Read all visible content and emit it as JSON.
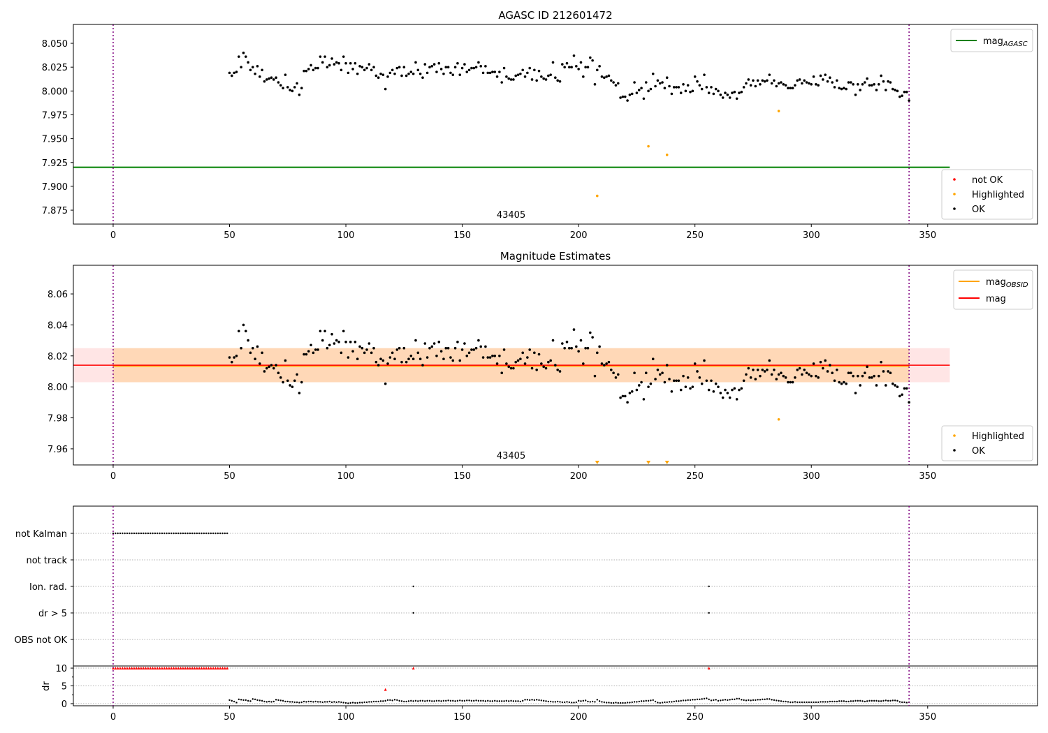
{
  "chart_data": [
    {
      "type": "scatter",
      "title": "AGASC ID 212601472",
      "annotation": "43405",
      "xlim": [
        -17.1,
        397.2
      ],
      "ylim": [
        7.8604,
        8.0698
      ],
      "xticks": [
        0,
        50,
        100,
        150,
        200,
        250,
        300,
        350
      ],
      "yticks": [
        7.875,
        7.9,
        7.925,
        7.95,
        7.975,
        8.0,
        8.025,
        8.05
      ],
      "ytick_labels": [
        "7.875",
        "7.900",
        "7.925",
        "7.950",
        "7.975",
        "8.000",
        "8.025",
        "8.050"
      ],
      "mag_agasc": 7.92,
      "legend_lines": [
        {
          "label": "mag",
          "sub": "AGASC",
          "color": "#008000"
        }
      ],
      "legend_points": [
        {
          "label": "not OK",
          "color": "#ff0000"
        },
        {
          "label": "Highlighted",
          "color": "#ffa500"
        },
        {
          "label": "OK",
          "color": "#000000"
        }
      ],
      "highlighted": [
        [
          208,
          7.89
        ],
        [
          230,
          7.942
        ],
        [
          238,
          7.933
        ],
        [
          286,
          7.979
        ]
      ]
    },
    {
      "type": "scatter",
      "title": "Magnitude Estimates",
      "annotation": "43405",
      "xlim": [
        -17.1,
        397.2
      ],
      "ylim": [
        7.9496,
        8.0785
      ],
      "xticks": [
        0,
        50,
        100,
        150,
        200,
        250,
        300,
        350
      ],
      "yticks": [
        7.96,
        7.98,
        8.0,
        8.02,
        8.04,
        8.06
      ],
      "ytick_labels": [
        "7.96",
        "7.98",
        "8.00",
        "8.02",
        "8.04",
        "8.06"
      ],
      "mag": 8.014,
      "mag_obsid": 8.0135,
      "band": [
        8.003,
        8.025
      ],
      "legend_lines": [
        {
          "label": "mag",
          "sub": "OBSID",
          "color": "#ffa500"
        },
        {
          "label": "mag",
          "sub": "",
          "color": "#ff0000"
        }
      ],
      "legend_points": [
        {
          "label": "Highlighted",
          "color": "#ffa500"
        },
        {
          "label": "OK",
          "color": "#000000"
        }
      ],
      "highlighted": [
        [
          286,
          7.979
        ]
      ],
      "off_scale_low": [
        208,
        230,
        238
      ]
    },
    {
      "type": "scatter",
      "title": "",
      "flag_labels": [
        "OBS not OK",
        "dr > 5",
        "Ion. rad.",
        "not track",
        "not Kalman"
      ],
      "flags": {
        "not Kalman": {
          "x_from": 0,
          "x_to": 49
        },
        "Ion. rad.": [
          129,
          256
        ],
        "dr > 5": [
          129,
          256
        ]
      },
      "dr_ylabel": "dr",
      "dr_yticks": [
        0,
        5,
        10
      ],
      "dr_ytick_labels": [
        "0",
        "5",
        "10"
      ],
      "dr_ylim": [
        -0.6,
        10.6
      ],
      "dr_not_ok": [
        [
          117,
          4.0
        ],
        [
          129,
          10
        ],
        [
          256,
          10
        ]
      ],
      "dr_not_ok_range": {
        "x_from": 0,
        "x_to": 49,
        "value": 10
      },
      "dr_ok_x_start": 50,
      "dr_ok": [
        1.0,
        0.8,
        0.6,
        0.3,
        1.2,
        1.1,
        1.0,
        1.0,
        0.8,
        0.7,
        1.3,
        1.2,
        1.0,
        0.9,
        0.8,
        0.6,
        0.5,
        0.6,
        0.5,
        0.6,
        1.1,
        1.0,
        0.9,
        0.8,
        0.6,
        0.6,
        0.5,
        0.5,
        0.4,
        0.4,
        0.3,
        0.4,
        0.6,
        0.5,
        0.6,
        0.6,
        0.5,
        0.6,
        0.5,
        0.5,
        0.4,
        0.5,
        0.5,
        0.6,
        0.4,
        0.5,
        0.4,
        0.5,
        0.4,
        0.3,
        0.2,
        0.1,
        0.2,
        0.3,
        0.2,
        0.2,
        0.3,
        0.3,
        0.4,
        0.4,
        0.5,
        0.5,
        0.6,
        0.6,
        0.6,
        0.7,
        0.7,
        0.8,
        1.0,
        1.0,
        0.9,
        1.1,
        1.0,
        0.8,
        0.7,
        0.6,
        0.6,
        0.7,
        0.8,
        0.7,
        0.8,
        0.7,
        0.8,
        0.8,
        0.7,
        0.8,
        0.8,
        0.7,
        0.7,
        0.8,
        0.8,
        0.7,
        0.8,
        0.8,
        0.9,
        0.8,
        0.8,
        0.7,
        0.8,
        0.9,
        0.8,
        0.8,
        0.9,
        0.9,
        0.8,
        0.8,
        0.9,
        0.8,
        0.8,
        0.8,
        0.7,
        0.8,
        0.7,
        0.7,
        0.8,
        0.7,
        0.7,
        0.7,
        0.7,
        0.8,
        0.7,
        0.8,
        0.7,
        0.7,
        0.7,
        0.6,
        0.8,
        1.1,
        1.1,
        1.0,
        1.1,
        1.0,
        1.1,
        1.0,
        0.9,
        0.8,
        0.7,
        0.6,
        0.6,
        0.5,
        0.5,
        0.6,
        0.5,
        0.4,
        0.4,
        0.5,
        0.4,
        0.3,
        0.3,
        0.4,
        0.8,
        0.7,
        0.8,
        0.9,
        0.6,
        0.5,
        0.6,
        0.5,
        1.1,
        0.7,
        0.5,
        0.4,
        0.3,
        0.3,
        0.2,
        0.2,
        0.3,
        0.2,
        0.2,
        0.2,
        0.2,
        0.3,
        0.3,
        0.4,
        0.5,
        0.5,
        0.6,
        0.7,
        0.7,
        0.8,
        0.8,
        0.9,
        1.0,
        0.6,
        0.3,
        0.2,
        0.3,
        0.4,
        0.4,
        0.5,
        0.5,
        0.6,
        0.7,
        0.7,
        0.8,
        0.9,
        0.9,
        1.0,
        1.0,
        1.1,
        1.1,
        1.2,
        1.2,
        1.3,
        1.4,
        1.5,
        1.2,
        0.9,
        1.0,
        1.1,
        0.8,
        0.9,
        1.0,
        1.1,
        1.0,
        1.1,
        1.2,
        1.2,
        1.4,
        1.4,
        1.1,
        1.0,
        0.9,
        1.0,
        0.9,
        1.0,
        1.0,
        1.1,
        1.1,
        1.2,
        1.2,
        1.3,
        1.3,
        1.1,
        1.0,
        0.9,
        0.8,
        0.7,
        0.6,
        0.6,
        0.5,
        0.4,
        0.4,
        0.5,
        0.4,
        0.4,
        0.4,
        0.4,
        0.4,
        0.4,
        0.4,
        0.4,
        0.4,
        0.4,
        0.5,
        0.5,
        0.5,
        0.5,
        0.6,
        0.6,
        0.6,
        0.6,
        0.7,
        0.7,
        0.7,
        0.6,
        0.6,
        0.7,
        0.7,
        0.8,
        0.8,
        0.8,
        0.7,
        0.6,
        0.7,
        0.8,
        0.8,
        0.8,
        0.8,
        0.7,
        0.7,
        0.8,
        0.9,
        0.8,
        0.8,
        0.9,
        0.9,
        0.8,
        0.5,
        0.4,
        0.4,
        0.3,
        0.4
      ]
    }
  ],
  "vlines": [
    0,
    342
  ],
  "ok_x_start": 50,
  "ok_mag": [
    8.019,
    8.016,
    8.019,
    8.02,
    8.036,
    8.025,
    8.04,
    8.036,
    8.03,
    8.022,
    8.025,
    8.018,
    8.026,
    8.015,
    8.022,
    8.01,
    8.012,
    8.013,
    8.014,
    8.012,
    8.014,
    8.009,
    8.006,
    8.003,
    8.017,
    8.004,
    8.001,
    8.0,
    8.004,
    8.008,
    7.996,
    8.003,
    8.021,
    8.021,
    8.023,
    8.027,
    8.022,
    8.024,
    8.024,
    8.036,
    8.03,
    8.036,
    8.025,
    8.027,
    8.034,
    8.028,
    8.03,
    8.029,
    8.022,
    8.036,
    8.029,
    8.019,
    8.029,
    8.023,
    8.029,
    8.018,
    8.026,
    8.025,
    8.022,
    8.024,
    8.028,
    8.022,
    8.025,
    8.016,
    8.014,
    8.018,
    8.017,
    8.002,
    8.015,
    8.019,
    8.022,
    8.018,
    8.024,
    8.025,
    8.016,
    8.025,
    8.016,
    8.018,
    8.02,
    8.018,
    8.03,
    8.022,
    8.018,
    8.014,
    8.028,
    8.019,
    8.025,
    8.026,
    8.028,
    8.02,
    8.029,
    8.023,
    8.018,
    8.025,
    8.025,
    8.019,
    8.017,
    8.025,
    8.029,
    8.017,
    8.024,
    8.028,
    8.02,
    8.022,
    8.024,
    8.024,
    8.025,
    8.03,
    8.026,
    8.019,
    8.026,
    8.019,
    8.019,
    8.02,
    8.02,
    8.015,
    8.02,
    8.009,
    8.024,
    8.015,
    8.013,
    8.012,
    8.012,
    8.016,
    8.017,
    8.018,
    8.022,
    8.015,
    8.019,
    8.024,
    8.012,
    8.022,
    8.011,
    8.021,
    8.015,
    8.013,
    8.012,
    8.016,
    8.017,
    8.03,
    8.014,
    8.011,
    8.01,
    8.028,
    8.025,
    8.029,
    8.025,
    8.025,
    8.037,
    8.026,
    8.023,
    8.03,
    8.015,
    8.025,
    8.025,
    8.035,
    8.032,
    8.007,
    8.022,
    8.026,
    8.015,
    8.014,
    8.015,
    8.016,
    8.011,
    8.009,
    8.006,
    8.008,
    7.993,
    7.994,
    7.994,
    7.99,
    7.996,
    7.997,
    8.009,
    7.998,
    8.001,
    8.003,
    7.992,
    8.009,
    8.0,
    8.002,
    8.018,
    8.005,
    8.011,
    8.008,
    8.009,
    8.003,
    8.014,
    8.005,
    7.997,
    8.004,
    8.004,
    8.004,
    7.998,
    8.007,
    8.0,
    8.006,
    7.999,
    8.0,
    8.015,
    8.01,
    8.006,
    8.002,
    8.017,
    8.004,
    7.998,
    8.004,
    7.997,
    8.002,
    8.0,
    7.996,
    7.993,
    7.998,
    7.996,
    7.993,
    7.998,
    7.999,
    7.992,
    7.998,
    7.999,
    8.004,
    8.008,
    8.012,
    8.006,
    8.011,
    8.005,
    8.011,
    8.007,
    8.011,
    8.01,
    8.011,
    8.017,
    8.008,
    8.011,
    8.005,
    8.008,
    8.009,
    8.007,
    8.006,
    8.003,
    8.003,
    8.003,
    8.006,
    8.011,
    8.012,
    8.008,
    8.011,
    8.009,
    8.008,
    8.007,
    8.015,
    8.007,
    8.006,
    8.016,
    8.012,
    8.017,
    8.01,
    8.014,
    8.009,
    8.004,
    8.011,
    8.003,
    8.002,
    8.003,
    8.002,
    8.009,
    8.009,
    8.007,
    7.996,
    8.007,
    8.001,
    8.007,
    8.009,
    8.013,
    8.006,
    8.006,
    8.007,
    8.001,
    8.007,
    8.016,
    8.01,
    8.001,
    8.01,
    8.009,
    8.002,
    8.001,
    8.0,
    7.994,
    7.995,
    7.999,
    7.999,
    7.99
  ]
}
